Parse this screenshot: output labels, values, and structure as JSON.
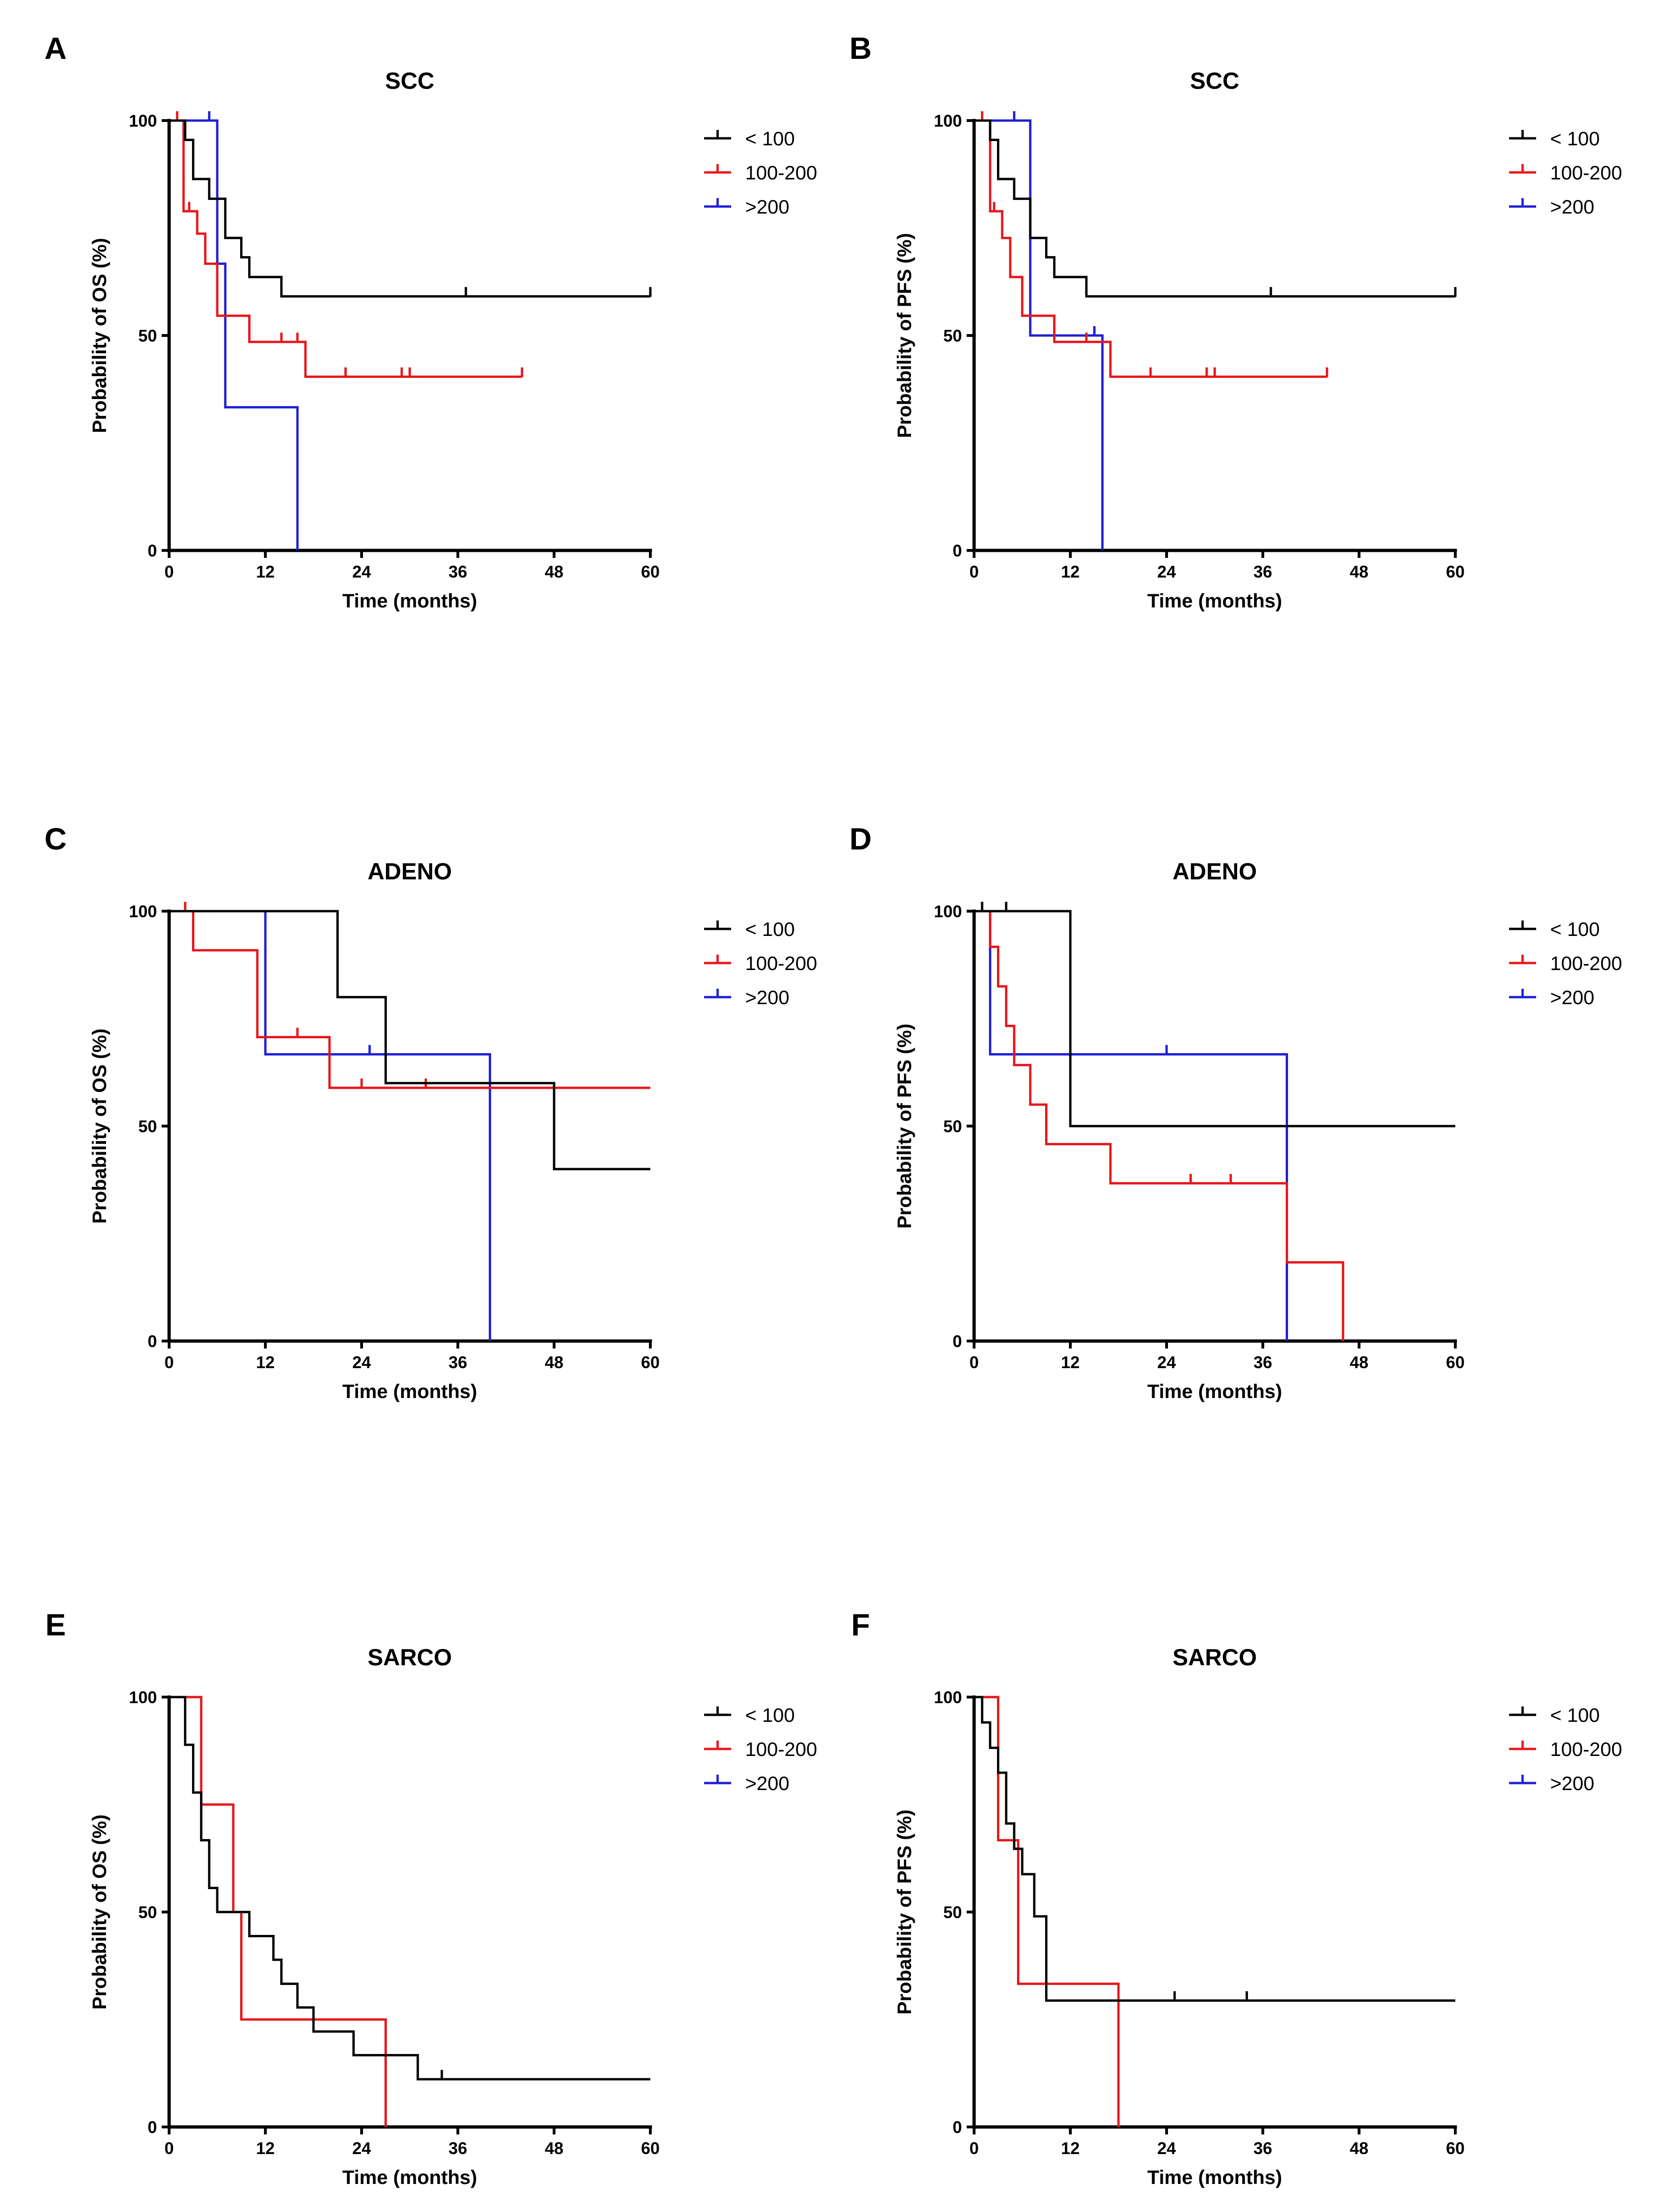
{
  "figure": {
    "legend_entries": [
      {
        "name": "< 100",
        "color": "#000000"
      },
      {
        "name": "100-200",
        "color": "#e8161b"
      },
      {
        "name": ">200",
        "color": "#1f1fd6"
      }
    ]
  },
  "chart_data": [
    {
      "panel": "A",
      "title": "SCC",
      "type": "line",
      "subtype": "kaplan-meier",
      "xlabel": "Time (months)",
      "ylabel": "Probability of OS (%)",
      "xlim": [
        0,
        60
      ],
      "ylim": [
        0,
        100
      ],
      "xticks": [
        0,
        12,
        24,
        36,
        48,
        60
      ],
      "yticks": [
        0,
        50,
        100
      ],
      "legend_position": "right",
      "series": [
        {
          "name": "< 100",
          "color": "#000000",
          "steps": [
            [
              0,
              100
            ],
            [
              2,
              100
            ],
            [
              2,
              95.5
            ],
            [
              3,
              95.5
            ],
            [
              3,
              86.4
            ],
            [
              5,
              86.4
            ],
            [
              5,
              81.8
            ],
            [
              7,
              81.8
            ],
            [
              7,
              72.7
            ],
            [
              9,
              72.7
            ],
            [
              9,
              68.2
            ],
            [
              10,
              68.2
            ],
            [
              10,
              63.6
            ],
            [
              14,
              63.6
            ],
            [
              14,
              59.1
            ],
            [
              60,
              59.1
            ]
          ],
          "censors": [
            [
              37,
              59.1
            ],
            [
              60,
              59.1
            ]
          ]
        },
        {
          "name": "100-200",
          "color": "#e8161b",
          "steps": [
            [
              0,
              100
            ],
            [
              1.8,
              100
            ],
            [
              1.8,
              78.9
            ],
            [
              3.5,
              78.9
            ],
            [
              3.5,
              73.7
            ],
            [
              4.5,
              73.7
            ],
            [
              4.5,
              66.7
            ],
            [
              6,
              66.7
            ],
            [
              6,
              54.6
            ],
            [
              10,
              54.6
            ],
            [
              10,
              48.5
            ],
            [
              17,
              48.5
            ],
            [
              17,
              40.4
            ],
            [
              44,
              40.4
            ]
          ],
          "censors": [
            [
              1,
              100
            ],
            [
              2.5,
              78.9
            ],
            [
              14,
              48.5
            ],
            [
              16,
              48.5
            ],
            [
              22,
              40.4
            ],
            [
              29,
              40.4
            ],
            [
              30,
              40.4
            ],
            [
              44,
              40.4
            ]
          ]
        },
        {
          "name": ">200",
          "color": "#1f1fd6",
          "steps": [
            [
              0,
              100
            ],
            [
              6,
              100
            ],
            [
              6,
              66.7
            ],
            [
              7,
              66.7
            ],
            [
              7,
              33.3
            ],
            [
              16,
              33.3
            ],
            [
              16,
              0
            ]
          ],
          "censors": [
            [
              5,
              100
            ]
          ]
        }
      ]
    },
    {
      "panel": "B",
      "title": "SCC",
      "type": "line",
      "subtype": "kaplan-meier",
      "xlabel": "Time (months)",
      "ylabel": "Probability of PFS (%)",
      "xlim": [
        0,
        60
      ],
      "ylim": [
        0,
        100
      ],
      "xticks": [
        0,
        12,
        24,
        36,
        48,
        60
      ],
      "yticks": [
        0,
        50,
        100
      ],
      "legend_position": "right",
      "series": [
        {
          "name": "< 100",
          "color": "#000000",
          "steps": [
            [
              0,
              100
            ],
            [
              2,
              100
            ],
            [
              2,
              95.5
            ],
            [
              3,
              95.5
            ],
            [
              3,
              86.4
            ],
            [
              5,
              86.4
            ],
            [
              5,
              81.8
            ],
            [
              7,
              81.8
            ],
            [
              7,
              72.7
            ],
            [
              9,
              72.7
            ],
            [
              9,
              68.2
            ],
            [
              10,
              68.2
            ],
            [
              10,
              63.6
            ],
            [
              14,
              63.6
            ],
            [
              14,
              59.1
            ],
            [
              60,
              59.1
            ]
          ],
          "censors": [
            [
              37,
              59.1
            ],
            [
              60,
              59.1
            ]
          ]
        },
        {
          "name": "100-200",
          "color": "#e8161b",
          "steps": [
            [
              0,
              100
            ],
            [
              2,
              100
            ],
            [
              2,
              78.9
            ],
            [
              3.5,
              78.9
            ],
            [
              3.5,
              72.7
            ],
            [
              4.5,
              72.7
            ],
            [
              4.5,
              63.6
            ],
            [
              6,
              63.6
            ],
            [
              6,
              54.6
            ],
            [
              10,
              54.6
            ],
            [
              10,
              48.5
            ],
            [
              17,
              48.5
            ],
            [
              17,
              40.4
            ],
            [
              44,
              40.4
            ]
          ],
          "censors": [
            [
              1,
              100
            ],
            [
              2.5,
              78.9
            ],
            [
              14,
              48.5
            ],
            [
              22,
              40.4
            ],
            [
              29,
              40.4
            ],
            [
              30,
              40.4
            ],
            [
              44,
              40.4
            ]
          ]
        },
        {
          "name": ">200",
          "color": "#1f1fd6",
          "steps": [
            [
              0,
              100
            ],
            [
              7,
              100
            ],
            [
              7,
              50
            ],
            [
              16,
              50
            ],
            [
              16,
              0
            ]
          ],
          "censors": [
            [
              5,
              100
            ],
            [
              15,
              50
            ]
          ]
        }
      ]
    },
    {
      "panel": "C",
      "title": "ADENO",
      "type": "line",
      "subtype": "kaplan-meier",
      "xlabel": "Time (months)",
      "ylabel": "Probability of OS (%)",
      "xlim": [
        0,
        60
      ],
      "ylim": [
        0,
        100
      ],
      "xticks": [
        0,
        12,
        24,
        36,
        48,
        60
      ],
      "yticks": [
        0,
        50,
        100
      ],
      "legend_position": "right",
      "series": [
        {
          "name": "< 100",
          "color": "#000000",
          "steps": [
            [
              0,
              100
            ],
            [
              21,
              100
            ],
            [
              21,
              80
            ],
            [
              27,
              80
            ],
            [
              27,
              60
            ],
            [
              48,
              60
            ],
            [
              48,
              40
            ],
            [
              60,
              40
            ]
          ],
          "censors": []
        },
        {
          "name": "100-200",
          "color": "#e8161b",
          "steps": [
            [
              0,
              100
            ],
            [
              3,
              100
            ],
            [
              3,
              90.9
            ],
            [
              11,
              90.9
            ],
            [
              11,
              70.7
            ],
            [
              20,
              70.7
            ],
            [
              20,
              58.9
            ],
            [
              60,
              58.9
            ]
          ],
          "censors": [
            [
              2,
              100
            ],
            [
              16,
              70.7
            ],
            [
              24,
              58.9
            ],
            [
              32,
              58.9
            ]
          ]
        },
        {
          "name": ">200",
          "color": "#1f1fd6",
          "steps": [
            [
              0,
              100
            ],
            [
              12,
              100
            ],
            [
              12,
              66.7
            ],
            [
              40,
              66.7
            ],
            [
              40,
              0
            ]
          ],
          "censors": [
            [
              25,
              66.7
            ]
          ]
        }
      ]
    },
    {
      "panel": "D",
      "title": "ADENO",
      "type": "line",
      "subtype": "kaplan-meier",
      "xlabel": "Time (months)",
      "ylabel": "Probability of PFS (%)",
      "xlim": [
        0,
        60
      ],
      "ylim": [
        0,
        100
      ],
      "xticks": [
        0,
        12,
        24,
        36,
        48,
        60
      ],
      "yticks": [
        0,
        50,
        100
      ],
      "legend_position": "right",
      "series": [
        {
          "name": "< 100",
          "color": "#000000",
          "steps": [
            [
              0,
              100
            ],
            [
              12,
              100
            ],
            [
              12,
              50
            ],
            [
              60,
              50
            ]
          ],
          "censors": [
            [
              1,
              100
            ],
            [
              4,
              100
            ]
          ]
        },
        {
          "name": "100-200",
          "color": "#e8161b",
          "steps": [
            [
              0,
              100
            ],
            [
              2,
              100
            ],
            [
              2,
              91.7
            ],
            [
              3,
              91.7
            ],
            [
              3,
              82.5
            ],
            [
              4,
              82.5
            ],
            [
              4,
              73.3
            ],
            [
              5,
              73.3
            ],
            [
              5,
              64.2
            ],
            [
              7,
              64.2
            ],
            [
              7,
              55
            ],
            [
              9,
              55
            ],
            [
              9,
              45.8
            ],
            [
              17,
              45.8
            ],
            [
              17,
              36.7
            ],
            [
              39,
              36.7
            ],
            [
              39,
              18.3
            ],
            [
              46,
              18.3
            ],
            [
              46,
              0
            ]
          ],
          "censors": [
            [
              27,
              36.7
            ],
            [
              32,
              36.7
            ]
          ]
        },
        {
          "name": ">200",
          "color": "#1f1fd6",
          "steps": [
            [
              0,
              100
            ],
            [
              2,
              100
            ],
            [
              2,
              66.7
            ],
            [
              39,
              66.7
            ],
            [
              39,
              0
            ]
          ],
          "censors": [
            [
              24,
              66.7
            ]
          ]
        }
      ]
    },
    {
      "panel": "E",
      "title": "SARCO",
      "type": "line",
      "subtype": "kaplan-meier",
      "xlabel": "Time (months)",
      "ylabel": "Probability of OS (%)",
      "xlim": [
        0,
        60
      ],
      "ylim": [
        0,
        100
      ],
      "xticks": [
        0,
        12,
        24,
        36,
        48,
        60
      ],
      "yticks": [
        0,
        50,
        100
      ],
      "legend_position": "right",
      "series": [
        {
          "name": "< 100",
          "color": "#000000",
          "steps": [
            [
              0,
              100
            ],
            [
              2,
              100
            ],
            [
              2,
              88.9
            ],
            [
              3,
              88.9
            ],
            [
              3,
              77.8
            ],
            [
              4,
              77.8
            ],
            [
              4,
              66.7
            ],
            [
              5,
              66.7
            ],
            [
              5,
              55.6
            ],
            [
              6,
              55.6
            ],
            [
              6,
              50
            ],
            [
              10,
              50
            ],
            [
              10,
              44.4
            ],
            [
              13,
              44.4
            ],
            [
              13,
              38.9
            ],
            [
              14,
              38.9
            ],
            [
              14,
              33.3
            ],
            [
              16,
              33.3
            ],
            [
              16,
              27.8
            ],
            [
              18,
              27.8
            ],
            [
              18,
              22.2
            ],
            [
              23,
              22.2
            ],
            [
              23,
              16.7
            ],
            [
              31,
              16.7
            ],
            [
              31,
              11.1
            ],
            [
              60,
              11.1
            ]
          ],
          "censors": [
            [
              34,
              11.1
            ]
          ]
        },
        {
          "name": "100-200",
          "color": "#e8161b",
          "steps": [
            [
              0,
              100
            ],
            [
              4,
              100
            ],
            [
              4,
              75
            ],
            [
              8,
              75
            ],
            [
              8,
              50
            ],
            [
              9,
              50
            ],
            [
              9,
              25
            ],
            [
              27,
              25
            ],
            [
              27,
              0
            ]
          ],
          "censors": []
        },
        {
          "name": ">200",
          "color": "#1f1fd6",
          "steps": [],
          "censors": []
        }
      ]
    },
    {
      "panel": "F",
      "title": "SARCO",
      "type": "line",
      "subtype": "kaplan-meier",
      "xlabel": "Time (months)",
      "ylabel": "Probability of PFS (%)",
      "xlim": [
        0,
        60
      ],
      "ylim": [
        0,
        100
      ],
      "xticks": [
        0,
        12,
        24,
        36,
        48,
        60
      ],
      "yticks": [
        0,
        50,
        100
      ],
      "legend_position": "right",
      "series": [
        {
          "name": "< 100",
          "color": "#000000",
          "steps": [
            [
              0,
              100
            ],
            [
              1,
              100
            ],
            [
              1,
              94.1
            ],
            [
              2,
              94.1
            ],
            [
              2,
              88.2
            ],
            [
              3,
              88.2
            ],
            [
              3,
              82.4
            ],
            [
              4,
              82.4
            ],
            [
              4,
              70.6
            ],
            [
              5,
              70.6
            ],
            [
              5,
              64.7
            ],
            [
              6,
              64.7
            ],
            [
              6,
              58.8
            ],
            [
              7.5,
              58.8
            ],
            [
              7.5,
              49
            ],
            [
              9,
              49
            ],
            [
              9,
              29.4
            ],
            [
              60,
              29.4
            ]
          ],
          "censors": [
            [
              25,
              29.4
            ],
            [
              34,
              29.4
            ]
          ]
        },
        {
          "name": "100-200",
          "color": "#e8161b",
          "steps": [
            [
              0,
              100
            ],
            [
              3,
              100
            ],
            [
              3,
              66.7
            ],
            [
              5.5,
              66.7
            ],
            [
              5.5,
              33.3
            ],
            [
              18,
              33.3
            ],
            [
              18,
              0
            ]
          ],
          "censors": []
        },
        {
          "name": ">200",
          "color": "#1f1fd6",
          "steps": [],
          "censors": []
        }
      ]
    }
  ]
}
